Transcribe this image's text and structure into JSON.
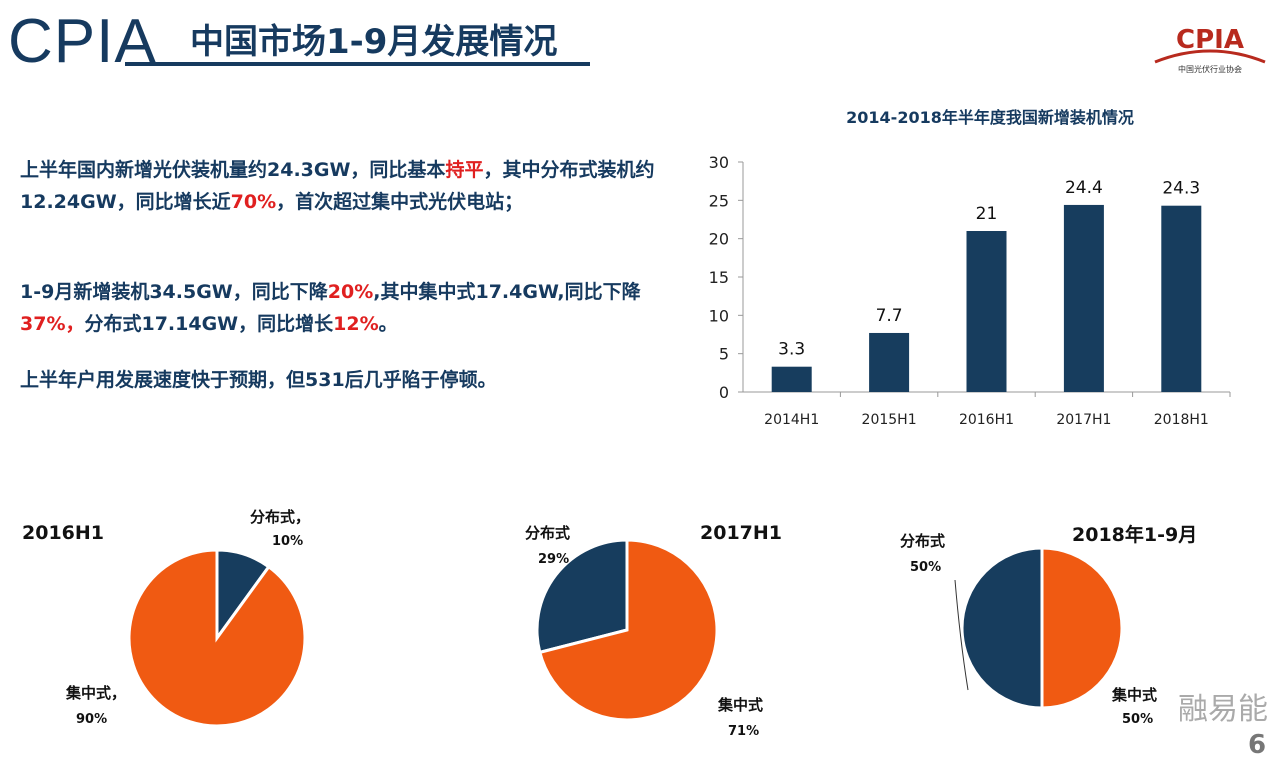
{
  "header": {
    "brand": "CPIA",
    "title": "中国市场1-9月发展情况",
    "logo_text": "CPIA",
    "logo_sub": "中国光伏行业协会"
  },
  "paragraphs": [
    {
      "parts": [
        "上半年国内新增光伏装机量约24.3GW，同比基本",
        "持平",
        "，其中分布式装机约12.24GW，同比增长近",
        "70%",
        "，首次超过集中式光伏电站；"
      ]
    },
    {
      "parts": [
        "1-9月新增装机34.5GW，同比下降",
        "20%",
        ",其中集中式17.4GW,同比下降",
        "37%，",
        "分布式17.14GW，同比增长",
        "12%",
        "。"
      ]
    },
    {
      "parts": [
        "上半年户用发展速度快于预期，但531后几乎陷于停顿。"
      ]
    }
  ],
  "colors": {
    "navy": "#173d5e",
    "orange": "#f05a12",
    "red": "#e02020"
  },
  "chart_data": [
    {
      "type": "bar",
      "title": "2014-2018年半年度我国新增装机情况",
      "categories": [
        "2014H1",
        "2015H1",
        "2016H1",
        "2017H1",
        "2018H1"
      ],
      "values": [
        3.3,
        7.7,
        21,
        24.4,
        24.3
      ],
      "data_labels": [
        "3.3",
        "7.7",
        "21",
        "24.4",
        "24.3"
      ],
      "ylim": [
        0,
        30
      ],
      "yticks": [
        0,
        5,
        10,
        15,
        20,
        25,
        30
      ],
      "grid": false
    },
    {
      "type": "pie",
      "title": "2016H1",
      "slices": [
        {
          "name": "分布式，",
          "label": "10%",
          "value": 10
        },
        {
          "name": "集中式，",
          "label": "90%",
          "value": 90
        }
      ]
    },
    {
      "type": "pie",
      "title": "2017H1",
      "slices": [
        {
          "name": "分布式",
          "label": "29%",
          "value": 29
        },
        {
          "name": "集中式",
          "label": "71%",
          "value": 71
        }
      ]
    },
    {
      "type": "pie",
      "title": "2018年1-9月",
      "slices": [
        {
          "name": "分布式",
          "label": "50%",
          "value": 50
        },
        {
          "name": "集中式",
          "label": "50%",
          "value": 50
        }
      ]
    }
  ],
  "watermark": "融易能",
  "page_number": "6"
}
